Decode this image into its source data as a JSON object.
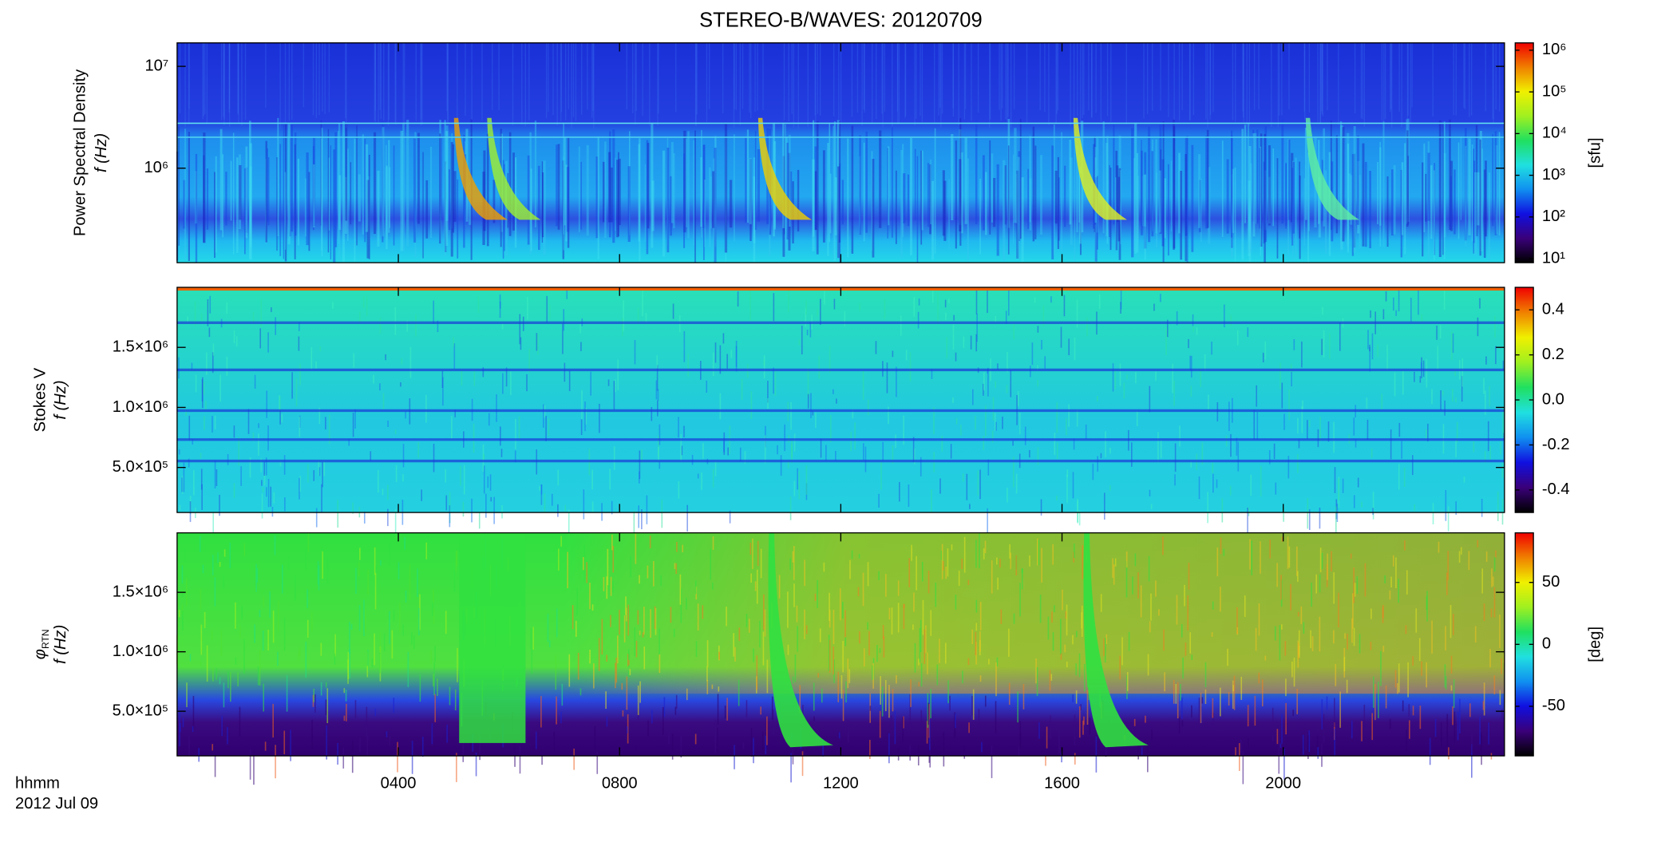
{
  "chart_data": [
    {
      "type": "heatmap",
      "title": "STEREO-B/WAVES: 20120709",
      "ylabel": [
        "Power Spectral Density",
        "f (Hz)"
      ],
      "ylim": [
        118000,
        17000000
      ],
      "ylog": true,
      "yticks": [
        {
          "value": 1000000,
          "label": "10⁶"
        },
        {
          "value": 10000000,
          "label": "10⁷"
        }
      ],
      "colorbar": {
        "label": "[sfu]",
        "lim": [
          8,
          1500000
        ],
        "log": true,
        "ticks": [
          {
            "value": 10,
            "label": "10¹"
          },
          {
            "value": 100,
            "label": "10²"
          },
          {
            "value": 1000,
            "label": "10³"
          },
          {
            "value": 10000,
            "label": "10⁴"
          },
          {
            "value": 100000,
            "label": "10⁵"
          },
          {
            "value": 1000000,
            "label": "10⁶"
          }
        ],
        "colors": [
          "#000000",
          "#3a007a",
          "#1010e0",
          "#1090f0",
          "#20e0e0",
          "#20e060",
          "#a0f020",
          "#f0f000",
          "#f08000",
          "#f00000"
        ]
      }
    },
    {
      "type": "heatmap",
      "ylabel": [
        "Stokes V",
        "f (Hz)"
      ],
      "ylim": [
        125000,
        2000000
      ],
      "yticks": [
        {
          "value": 500000,
          "label": "5.0×10⁵"
        },
        {
          "value": 1000000,
          "label": "1.0×10⁶"
        },
        {
          "value": 1500000,
          "label": "1.5×10⁶"
        }
      ],
      "colorbar": {
        "lim": [
          -0.5,
          0.5
        ],
        "ticks": [
          -0.4,
          -0.2,
          {
            "value": 0,
            "label": "0.0"
          },
          0.2,
          0.4
        ],
        "colors": [
          "#000000",
          "#3a007a",
          "#1010e0",
          "#1090f0",
          "#20e0e0",
          "#20e060",
          "#a0f020",
          "#f0f000",
          "#f08000",
          "#f00000"
        ]
      }
    },
    {
      "type": "heatmap",
      "ylabel": [
        "φ",
        "f (Hz)"
      ],
      "ylabel_subscript": "RTN",
      "ylim": [
        125000,
        2000000
      ],
      "yticks": [
        {
          "value": 500000,
          "label": "5.0×10⁵"
        },
        {
          "value": 1000000,
          "label": "1.0×10⁶"
        },
        {
          "value": 1500000,
          "label": "1.5×10⁶"
        }
      ],
      "xlim": [
        0,
        24
      ],
      "xticks": [
        {
          "value": 4,
          "label": "0400"
        },
        {
          "value": 8,
          "label": "0800"
        },
        {
          "value": 12,
          "label": "1200"
        },
        {
          "value": 16,
          "label": "1600"
        },
        {
          "value": 20,
          "label": "2000"
        }
      ],
      "xlabel": [
        "hhmm",
        "2012 Jul 09"
      ],
      "colorbar": {
        "label": "[deg]",
        "lim": [
          -90,
          90
        ],
        "ticks": [
          -50,
          0,
          50
        ],
        "colors": [
          "#000000",
          "#3a007a",
          "#1010e0",
          "#1090f0",
          "#20e0e0",
          "#20e060",
          "#a0f020",
          "#f0f000",
          "#f08000",
          "#f00000"
        ]
      }
    }
  ]
}
